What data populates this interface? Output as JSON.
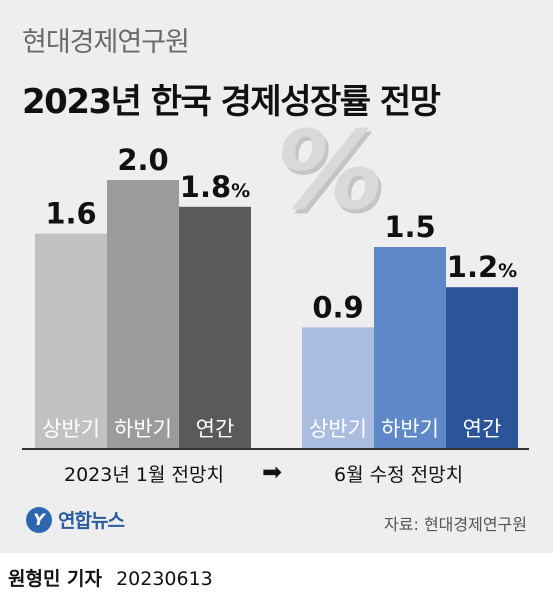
{
  "header": {
    "subtitle": "현대경제연구원",
    "title": "2023년 한국 경제성장률 전망"
  },
  "decoration": {
    "percent_glyph": "%"
  },
  "chart_data": {
    "type": "bar",
    "title": "2023년 한국 경제성장률 전망",
    "unit": "%",
    "groups": [
      {
        "name": "2023년 1월 전망치",
        "categories": [
          "상반기",
          "하반기",
          "연간"
        ],
        "values": [
          1.6,
          2.0,
          1.8
        ],
        "value_labels": [
          "1.6",
          "2.0",
          "1.8"
        ],
        "colors": [
          "#c2c2c2",
          "#9b9b9b",
          "#5b5a5a"
        ]
      },
      {
        "name": "6월 수정 전망치",
        "categories": [
          "상반기",
          "하반기",
          "연간"
        ],
        "values": [
          0.9,
          1.5,
          1.2
        ],
        "value_labels": [
          "0.9",
          "1.5",
          "1.2"
        ],
        "colors": [
          "#aabde0",
          "#5f88c8",
          "#2c5599"
        ]
      }
    ],
    "arrow_icon": "right-arrow-icon",
    "ylim": [
      0,
      2.0
    ],
    "grid": false,
    "legend": "none"
  },
  "footer": {
    "logo_mark": "Y",
    "logo_text": "연합뉴스",
    "source": "자료: 현대경제연구원",
    "byline_name": "원형민 기자",
    "byline_date": "20230613"
  }
}
